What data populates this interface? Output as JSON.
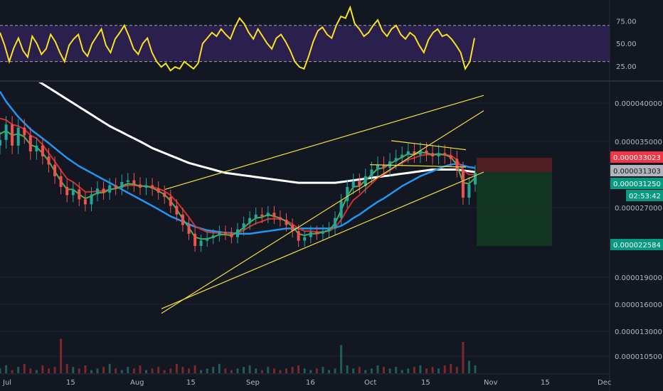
{
  "chart_data": {
    "type": "candlestick",
    "x_axis": {
      "tick_labels": [
        "Jul",
        "15",
        "Aug",
        "15",
        "Sep",
        "16",
        "Oct",
        "15",
        "Nov",
        "15",
        "Dec"
      ]
    },
    "rsi_panel": {
      "ylim": [
        10,
        95
      ],
      "tick_labels": [
        "75.00",
        "50.00",
        "25.00"
      ],
      "tick_values": [
        75,
        50,
        25
      ],
      "upper_band": 70,
      "lower_band": 30,
      "series": [
        62,
        48,
        30,
        45,
        56,
        42,
        35,
        58,
        50,
        38,
        44,
        60,
        52,
        40,
        30,
        48,
        55,
        60,
        42,
        36,
        50,
        58,
        66,
        48,
        40,
        55,
        62,
        70,
        58,
        44,
        38,
        50,
        56,
        40,
        30,
        24,
        28,
        20,
        24,
        22,
        30,
        26,
        22,
        28,
        50,
        56,
        62,
        58,
        66,
        60,
        55,
        68,
        78,
        72,
        62,
        55,
        66,
        58,
        50,
        44,
        56,
        60,
        52,
        42,
        30,
        24,
        22,
        36,
        52,
        64,
        68,
        60,
        56,
        70,
        80,
        78,
        90,
        72,
        66,
        58,
        62,
        70,
        76,
        64,
        58,
        66,
        70,
        60,
        55,
        62,
        58,
        48,
        40,
        54,
        62,
        66,
        58,
        60,
        55,
        48,
        40,
        22,
        30,
        56
      ],
      "colors": {
        "line": "#f5e321",
        "band_fill": "#2a1f4d",
        "band_line": "#9aa0b0"
      }
    },
    "price_panel": {
      "ylim": [
        9.5e-06,
        4.32e-05
      ],
      "tick_labels": [
        "0.000040000",
        "0.000035000",
        "0.000027000",
        "0.000019000",
        "0.000016000",
        "0.000013000",
        "0.000010500"
      ],
      "tick_values": [
        4e-05,
        3.5e-05,
        2.7e-05,
        1.9e-05,
        1.6e-05,
        1.3e-05,
        1.05e-05
      ],
      "candles_close": [
        3.52e-05,
        3.72e-05,
        3.45e-05,
        3.68e-05,
        3.58e-05,
        3.38e-05,
        3.45e-05,
        3.32e-05,
        3.22e-05,
        3.08e-05,
        2.95e-05,
        2.85e-05,
        2.92e-05,
        2.8e-05,
        2.74e-05,
        2.86e-05,
        2.93e-05,
        2.88e-05,
        2.97e-05,
        2.94e-05,
        3.01e-05,
        3.03e-05,
        2.98e-05,
        2.94e-05,
        2.97e-05,
        2.93e-05,
        2.88e-05,
        2.83e-05,
        2.72e-05,
        2.62e-05,
        2.5e-05,
        2.4e-05,
        2.26e-05,
        2.32e-05,
        2.35e-05,
        2.38e-05,
        2.42e-05,
        2.4e-05,
        2.36e-05,
        2.45e-05,
        2.52e-05,
        2.58e-05,
        2.62e-05,
        2.6e-05,
        2.64e-05,
        2.59e-05,
        2.56e-05,
        2.5e-05,
        2.43e-05,
        2.32e-05,
        2.36e-05,
        2.42e-05,
        2.4e-05,
        2.43e-05,
        2.46e-05,
        2.58e-05,
        2.78e-05,
        2.95e-05,
        3.02e-05,
        2.96e-05,
        3.08e-05,
        3.16e-05,
        3.22e-05,
        3.18e-05,
        3.26e-05,
        3.3e-05,
        3.34e-05,
        3.38e-05,
        3.34e-05,
        3.39e-05,
        3.36e-05,
        3.32e-05,
        3.36e-05,
        3.33e-05,
        3.29e-05,
        3.16e-05,
        2.82e-05,
        2.98e-05,
        3.12e-05
      ],
      "ema_short": [
        3.6e-05,
        3.64e-05,
        3.58e-05,
        3.6e-05,
        3.56e-05,
        3.46e-05,
        3.43e-05,
        3.36e-05,
        3.26e-05,
        3.14e-05,
        3.02e-05,
        2.92e-05,
        2.92e-05,
        2.86e-05,
        2.81e-05,
        2.84e-05,
        2.88e-05,
        2.88e-05,
        2.92e-05,
        2.93e-05,
        2.96e-05,
        2.99e-05,
        2.98e-05,
        2.96e-05,
        2.96e-05,
        2.94e-05,
        2.9e-05,
        2.86e-05,
        2.78e-05,
        2.68e-05,
        2.57e-05,
        2.47e-05,
        2.36e-05,
        2.34e-05,
        2.34e-05,
        2.36e-05,
        2.39e-05,
        2.39e-05,
        2.38e-05,
        2.42e-05,
        2.47e-05,
        2.53e-05,
        2.58e-05,
        2.59e-05,
        2.62e-05,
        2.6e-05,
        2.58e-05,
        2.54e-05,
        2.48e-05,
        2.4e-05,
        2.38e-05,
        2.4e-05,
        2.4e-05,
        2.42e-05,
        2.44e-05,
        2.52e-05,
        2.67e-05,
        2.84e-05,
        2.95e-05,
        2.96e-05,
        3.03e-05,
        3.1e-05,
        3.17e-05,
        3.18e-05,
        3.23e-05,
        3.27e-05,
        3.31e-05,
        3.35e-05,
        3.34e-05,
        3.37e-05,
        3.36e-05,
        3.34e-05,
        3.35e-05,
        3.34e-05,
        3.31e-05,
        3.22e-05,
        3e-05,
        2.99e-05,
        3.06e-05
      ],
      "ema_mid": [
        3.8e-05,
        3.78e-05,
        3.72e-05,
        3.7e-05,
        3.66e-05,
        3.58e-05,
        3.54e-05,
        3.46e-05,
        3.36e-05,
        3.26e-05,
        3.15e-05,
        3.05e-05,
        3.01e-05,
        2.95e-05,
        2.89e-05,
        2.89e-05,
        2.9e-05,
        2.9e-05,
        2.92e-05,
        2.93e-05,
        2.95e-05,
        2.97e-05,
        2.97e-05,
        2.96e-05,
        2.96e-05,
        2.95e-05,
        2.93e-05,
        2.9e-05,
        2.85e-05,
        2.77e-05,
        2.68e-05,
        2.59e-05,
        2.49e-05,
        2.45e-05,
        2.42e-05,
        2.41e-05,
        2.41e-05,
        2.41e-05,
        2.4e-05,
        2.41e-05,
        2.44e-05,
        2.48e-05,
        2.52e-05,
        2.54e-05,
        2.57e-05,
        2.57e-05,
        2.57e-05,
        2.55e-05,
        2.51e-05,
        2.46e-05,
        2.43e-05,
        2.43e-05,
        2.42e-05,
        2.42e-05,
        2.43e-05,
        2.47e-05,
        2.56e-05,
        2.68e-05,
        2.79e-05,
        2.85e-05,
        2.92e-05,
        2.99e-05,
        3.06e-05,
        3.1e-05,
        3.15e-05,
        3.2e-05,
        3.24e-05,
        3.28e-05,
        3.3e-05,
        3.33e-05,
        3.34e-05,
        3.34e-05,
        3.34e-05,
        3.34e-05,
        3.33e-05,
        3.28e-05,
        3.15e-05,
        3.1e-05,
        3.1e-05
      ],
      "ma_long": [
        4.15e-05,
        4.02e-05,
        3.92e-05,
        3.82e-05,
        3.74e-05,
        3.66e-05,
        3.6e-05,
        3.54e-05,
        3.48e-05,
        3.42e-05,
        3.36e-05,
        3.3e-05,
        3.25e-05,
        3.2e-05,
        3.16e-05,
        3.12e-05,
        3.08e-05,
        3.04e-05,
        3e-05,
        2.96e-05,
        2.92e-05,
        2.88e-05,
        2.84e-05,
        2.8e-05,
        2.76e-05,
        2.72e-05,
        2.68e-05,
        2.64e-05,
        2.6e-05,
        2.57e-05,
        2.54e-05,
        2.51e-05,
        2.48e-05,
        2.46e-05,
        2.44e-05,
        2.43e-05,
        2.42e-05,
        2.41e-05,
        2.41e-05,
        2.4e-05,
        2.4e-05,
        2.4e-05,
        2.41e-05,
        2.42e-05,
        2.43e-05,
        2.44e-05,
        2.45e-05,
        2.46e-05,
        2.46e-05,
        2.46e-05,
        2.46e-05,
        2.46e-05,
        2.46e-05,
        2.46e-05,
        2.46e-05,
        2.47e-05,
        2.49e-05,
        2.53e-05,
        2.58e-05,
        2.62e-05,
        2.67e-05,
        2.72e-05,
        2.77e-05,
        2.81e-05,
        2.86e-05,
        2.91e-05,
        2.96e-05,
        3e-05,
        3.04e-05,
        3.08e-05,
        3.11e-05,
        3.14e-05,
        3.17e-05,
        3.2e-05,
        3.22e-05,
        3.23e-05,
        3.21e-05,
        3.19e-05,
        3.18e-05
      ],
      "ma_200": [
        4.6e-05,
        4.55e-05,
        4.5e-05,
        4.45e-05,
        4.4e-05,
        4.35e-05,
        4.3e-05,
        4.25e-05,
        4.2e-05,
        4.15e-05,
        4.1e-05,
        4.05e-05,
        4e-05,
        3.95e-05,
        3.9e-05,
        3.85e-05,
        3.8e-05,
        3.75e-05,
        3.7e-05,
        3.66e-05,
        3.62e-05,
        3.58e-05,
        3.54e-05,
        3.5e-05,
        3.46e-05,
        3.42e-05,
        3.39e-05,
        3.36e-05,
        3.33e-05,
        3.3e-05,
        3.27e-05,
        3.24e-05,
        3.22e-05,
        3.2e-05,
        3.18e-05,
        3.16e-05,
        3.14e-05,
        3.12e-05,
        3.11e-05,
        3.1e-05,
        3.09e-05,
        3.08e-05,
        3.07e-05,
        3.06e-05,
        3.05e-05,
        3.04e-05,
        3.03e-05,
        3.02e-05,
        3.01e-05,
        3e-05,
        3e-05,
        3e-05,
        3e-05,
        3e-05,
        3e-05,
        3e-05,
        3.01e-05,
        3.02e-05,
        3.03e-05,
        3.04e-05,
        3.05e-05,
        3.06e-05,
        3.07e-05,
        3.08e-05,
        3.09e-05,
        3.1e-05,
        3.11e-05,
        3.12e-05,
        3.13e-05,
        3.14e-05,
        3.15e-05,
        3.16e-05,
        3.16e-05,
        3.16e-05,
        3.16e-05,
        3.16e-05,
        3.15e-05,
        3.14e-05,
        3.13e-05
      ],
      "channel_upper": {
        "from": [
          2.27e-05,
          1.5e-05
        ],
        "to": [
          6.8e-05,
          3.9e-05
        ]
      },
      "channel_lower": {
        "from": [
          2.27e-05,
          1.55e-05
        ],
        "to": [
          6.8e-05,
          3.13e-05
        ]
      },
      "channel_mid": {
        "from": [
          2.32e-05,
          2.92e-05
        ],
        "to": [
          6.8e-05,
          4.1e-05
        ]
      },
      "triangle": {
        "top": {
          "from": [
            5.5e-05,
            3.51e-05
          ],
          "to": [
            6.55e-05,
            3.4e-05
          ]
        },
        "bottom": {
          "from": [
            5.2e-05,
            3.22e-05
          ],
          "to": [
            6.55e-05,
            3.19e-05
          ]
        }
      },
      "position": {
        "entry": 3.1303e-05,
        "stop": 3.3023e-05,
        "target": 2.2584e-05
      },
      "price_tags": [
        {
          "label": "0.000033023",
          "value": 3.3023e-05,
          "bg": "#f23645",
          "fg": "#ffffff"
        },
        {
          "label": "0.000031303",
          "value": 3.1303e-05,
          "bg": "#b2b5be",
          "fg": "#131722"
        },
        {
          "label": "0.000031250",
          "value": 3.125e-05,
          "bg": "#089981",
          "fg": "#ffffff"
        },
        {
          "label": "02:53:42",
          "value": 2.94e-05,
          "bg": "#089981",
          "fg": "#ffffff"
        },
        {
          "label": "0.000022584",
          "value": 2.2584e-05,
          "bg": "#089981",
          "fg": "#ffffff"
        }
      ],
      "colors": {
        "candle_up": "#26a69a",
        "candle_down": "#ef5350",
        "ema_short": "#4caf50",
        "ema_mid": "#d32f2f",
        "ma_long": "#2196f3",
        "ma_200": "#ffffff",
        "channel": "#f0e040",
        "position_loss": "#5a1f25",
        "position_profit": "#133a22"
      }
    },
    "volume": {
      "values": [
        3,
        5,
        2,
        4,
        6,
        3,
        2,
        5,
        3,
        4,
        22,
        6,
        4,
        3,
        5,
        2,
        3,
        4,
        6,
        3,
        2,
        4,
        3,
        5,
        2,
        3,
        4,
        2,
        3,
        6,
        4,
        3,
        5,
        2,
        3,
        4,
        6,
        3,
        2,
        3,
        4,
        5,
        3,
        2,
        4,
        3,
        2,
        3,
        4,
        5,
        3,
        2,
        3,
        4,
        2,
        3,
        18,
        5,
        3,
        4,
        2,
        3,
        5,
        4,
        3,
        4,
        2,
        3,
        4,
        5,
        3,
        4,
        3,
        5,
        6,
        4,
        20,
        8,
        5
      ],
      "colors": {
        "up": "#1f5f58",
        "down": "#7a2a2e"
      }
    }
  }
}
